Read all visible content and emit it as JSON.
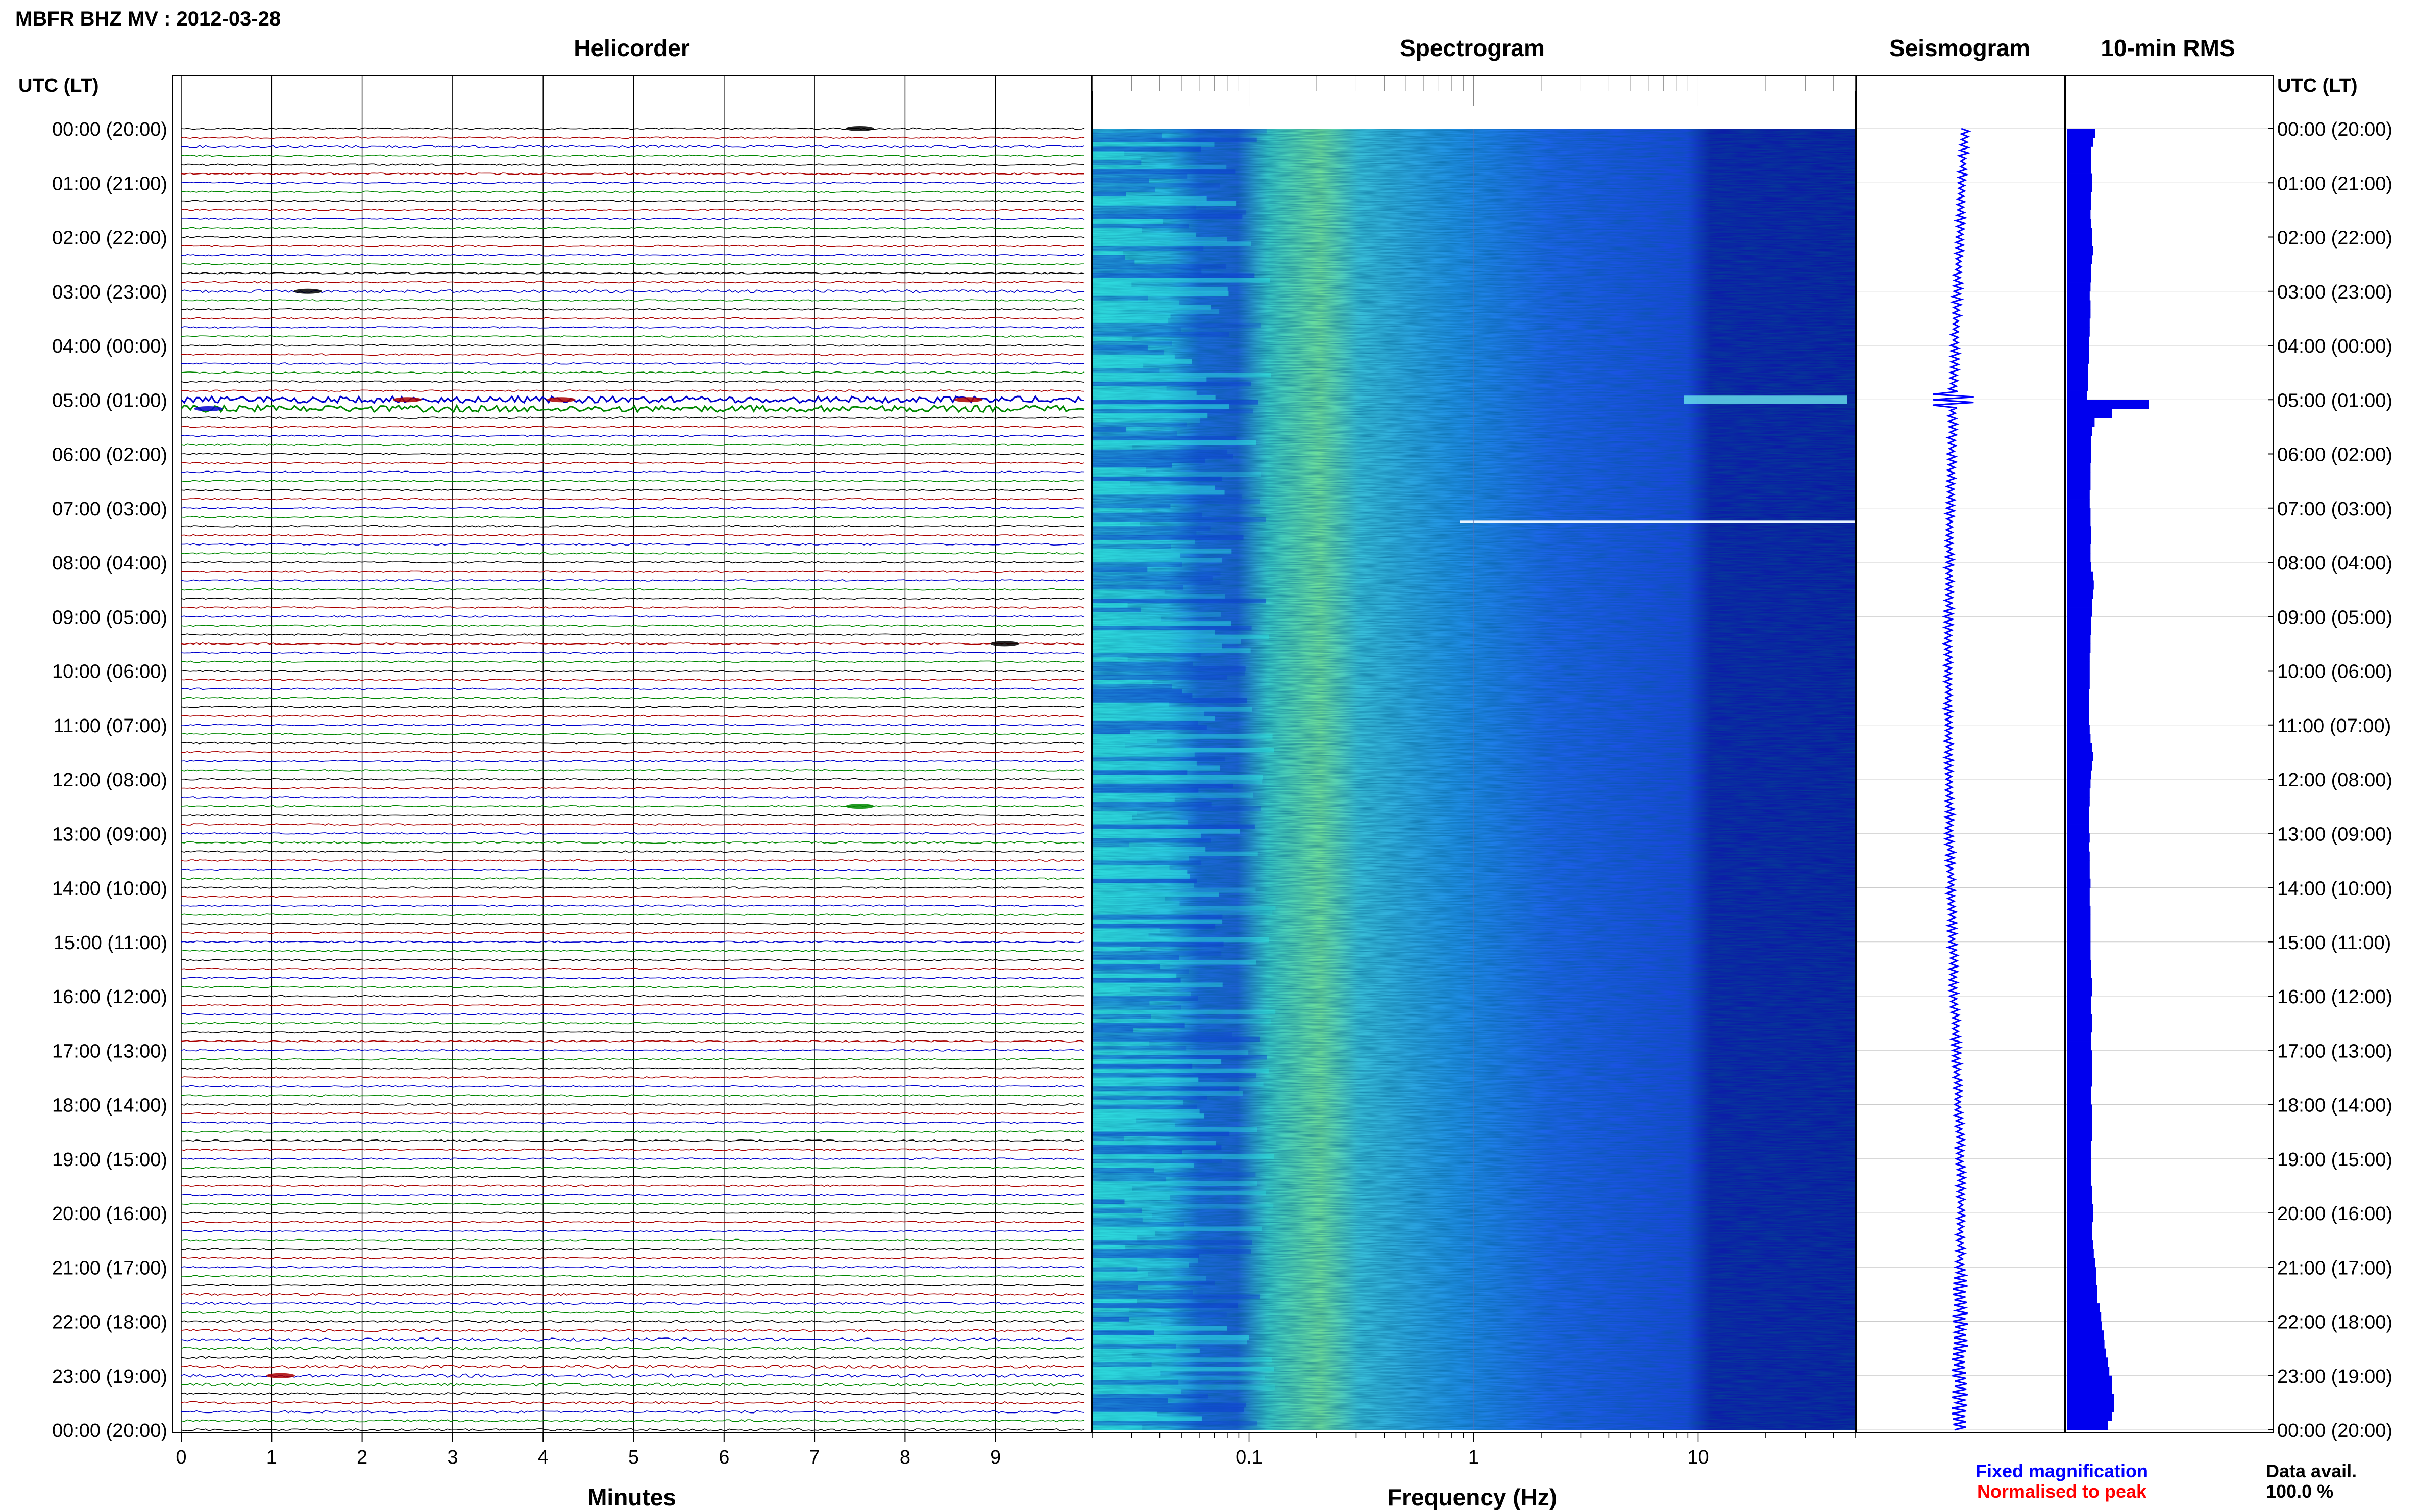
{
  "header": {
    "title": "MBFR BHZ MV : 2012-03-28",
    "time_axis_label": "UTC (LT)"
  },
  "panels": {
    "helicorder": "Helicorder",
    "spectrogram": "Spectrogram",
    "seismogram": "Seismogram",
    "rms": "10-min RMS"
  },
  "footer": {
    "legend_fixed": "Fixed magnification",
    "legend_normalised": "Normalised to peak",
    "data_avail_label": "Data avail.",
    "data_avail_value": "100.0 %"
  },
  "colors": {
    "legend_fixed": "#0000ff",
    "legend_normalised": "#ff0000",
    "trace_cycle": [
      "#000000",
      "#aa0000",
      "#0000cc",
      "#008800"
    ],
    "rms_bar": "#0000ee",
    "seismogram": "#0000ff"
  },
  "chart_data": [
    {
      "type": "line",
      "name": "helicorder",
      "title": "Helicorder",
      "xlabel": "Minutes",
      "x_ticks": [
        "0",
        "1",
        "2",
        "3",
        "4",
        "5",
        "6",
        "7",
        "8",
        "9"
      ],
      "xlim": [
        0,
        10
      ],
      "rows": 144,
      "row_interval_minutes": 10,
      "y_tick_labels": [
        "00:00 (20:00)",
        "01:00 (21:00)",
        "02:00 (22:00)",
        "03:00 (23:00)",
        "04:00 (00:00)",
        "05:00 (01:00)",
        "06:00 (02:00)",
        "07:00 (03:00)",
        "08:00 (04:00)",
        "09:00 (05:00)",
        "10:00 (06:00)",
        "11:00 (07:00)",
        "12:00 (08:00)",
        "13:00 (09:00)",
        "14:00 (10:00)",
        "15:00 (11:00)",
        "16:00 (12:00)",
        "17:00 (13:00)",
        "18:00 (14:00)",
        "19:00 (15:00)",
        "20:00 (16:00)",
        "21:00 (17:00)",
        "22:00 (18:00)",
        "23:00 (19:00)",
        "00:00 (20:00)"
      ]
    },
    {
      "type": "heatmap",
      "name": "spectrogram",
      "title": "Spectrogram",
      "xlabel": "Frequency (Hz)",
      "x_scale": "log",
      "x_ticks": [
        "0.1",
        "1",
        "10"
      ],
      "xlim": [
        0.02,
        50
      ]
    },
    {
      "type": "line",
      "name": "seismogram",
      "title": "Seismogram"
    },
    {
      "type": "bar",
      "name": "10-min RMS",
      "title": "10-min RMS",
      "orientation": "horizontal",
      "categories_note": "one bar per 10-minute interval, 00:00 to 24:00 UTC",
      "values": [
        0.35,
        0.32,
        0.3,
        0.3,
        0.3,
        0.31,
        0.31,
        0.3,
        0.3,
        0.29,
        0.3,
        0.31,
        0.31,
        0.32,
        0.31,
        0.3,
        0.3,
        0.29,
        0.28,
        0.29,
        0.29,
        0.28,
        0.28,
        0.27,
        0.27,
        0.27,
        0.26,
        0.26,
        0.26,
        0.25,
        1.0,
        0.55,
        0.34,
        0.31,
        0.3,
        0.3,
        0.3,
        0.29,
        0.29,
        0.29,
        0.28,
        0.28,
        0.29,
        0.29,
        0.3,
        0.3,
        0.29,
        0.29,
        0.3,
        0.32,
        0.33,
        0.32,
        0.31,
        0.31,
        0.3,
        0.3,
        0.29,
        0.29,
        0.28,
        0.28,
        0.28,
        0.28,
        0.27,
        0.27,
        0.27,
        0.27,
        0.28,
        0.29,
        0.31,
        0.32,
        0.31,
        0.3,
        0.29,
        0.28,
        0.28,
        0.27,
        0.27,
        0.27,
        0.28,
        0.27,
        0.28,
        0.28,
        0.28,
        0.29,
        0.28,
        0.28,
        0.29,
        0.29,
        0.29,
        0.29,
        0.29,
        0.29,
        0.3,
        0.3,
        0.31,
        0.31,
        0.3,
        0.3,
        0.31,
        0.31,
        0.3,
        0.3,
        0.31,
        0.31,
        0.31,
        0.31,
        0.3,
        0.3,
        0.31,
        0.31,
        0.31,
        0.31,
        0.3,
        0.3,
        0.3,
        0.3,
        0.3,
        0.31,
        0.31,
        0.32,
        0.32,
        0.31,
        0.31,
        0.32,
        0.33,
        0.35,
        0.36,
        0.36,
        0.37,
        0.37,
        0.4,
        0.42,
        0.43,
        0.45,
        0.46,
        0.48,
        0.5,
        0.52,
        0.55,
        0.55,
        0.58,
        0.58,
        0.55,
        0.5
      ]
    }
  ]
}
